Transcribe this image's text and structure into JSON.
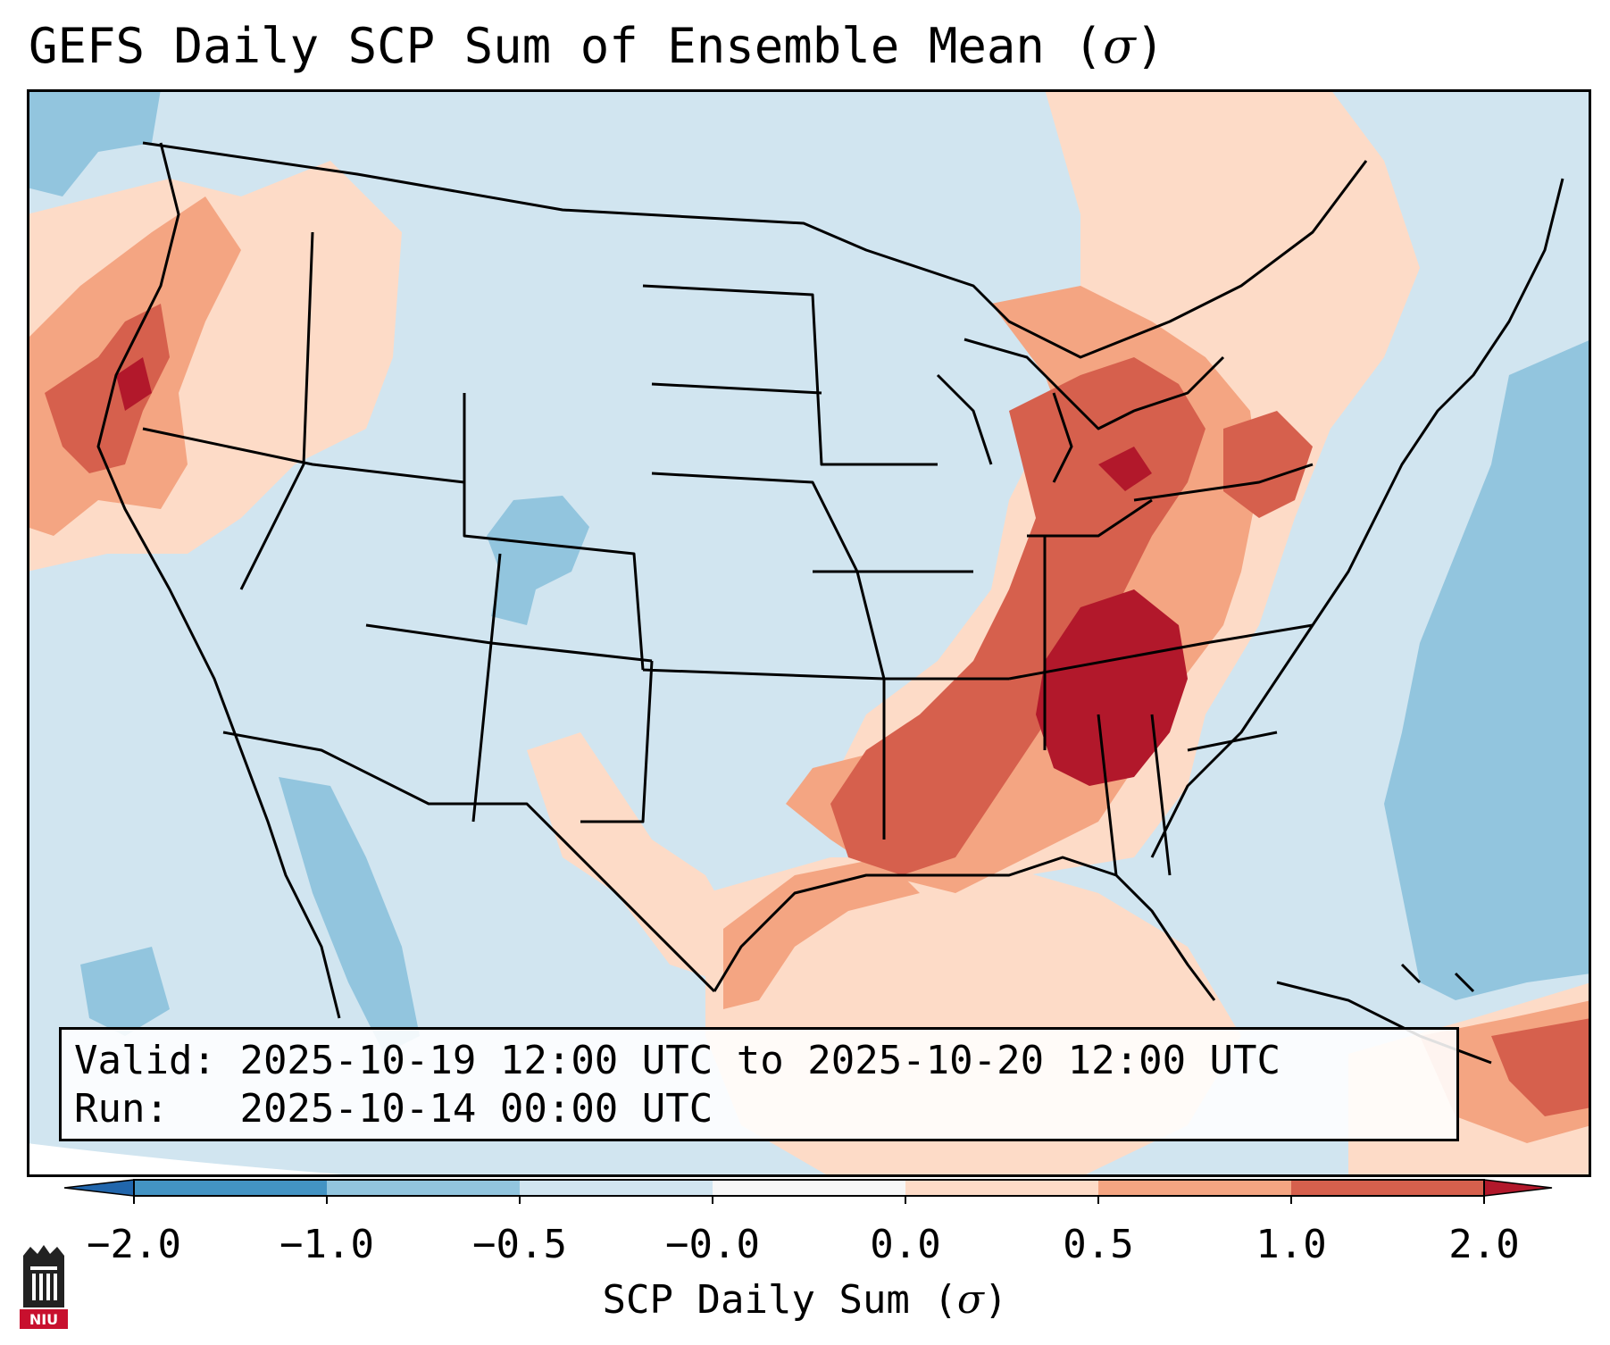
{
  "title": "GEFS Daily SCP Sum of Ensemble Mean (",
  "title_symbol": "σ",
  "title_close": ")",
  "info": {
    "valid_label": "Valid:",
    "valid_value": "2025-10-19 12:00 UTC to 2025-10-20 12:00 UTC",
    "run_label": "Run:",
    "run_value": "2025-10-14 00:00 UTC"
  },
  "colorbar": {
    "label": "SCP Daily Sum (",
    "label_symbol": "σ",
    "label_close": ")",
    "ticks": [
      "−2.0",
      "−1.0",
      "−0.5",
      "−0.0",
      "0.0",
      "0.5",
      "1.0",
      "2.0"
    ],
    "colors": [
      "#4393c3",
      "#92c5de",
      "#d1e5f0",
      "#f7f7f7",
      "#fddbc7",
      "#f4a582",
      "#d6604d"
    ],
    "under_color": "#2166ac",
    "over_color": "#b2182b"
  },
  "map_colors": {
    "neg_strong": "#92c5de",
    "neg_weak": "#d1e5f0",
    "pos_weak": "#fddbc7",
    "pos_mid": "#f4a582",
    "pos_strong": "#d6604d",
    "pos_max": "#b2182b",
    "outside": "#ffffff"
  },
  "logo": {
    "text": "NIU"
  }
}
